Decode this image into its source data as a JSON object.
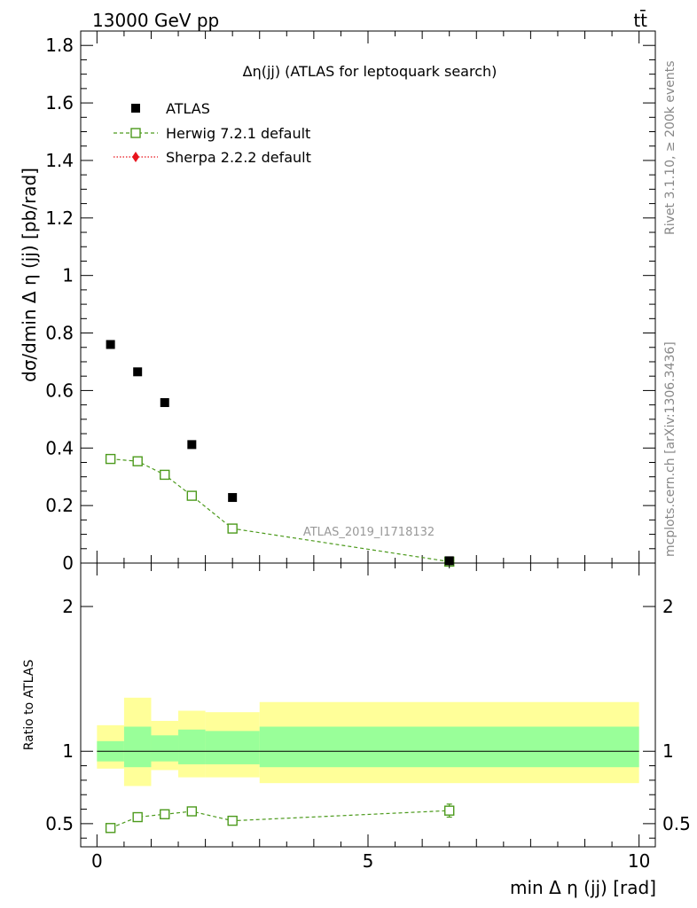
{
  "header": {
    "left": "13000 GeV pp",
    "right": "tt̄"
  },
  "side_labels": {
    "top": "Rivet 3.1.10, ≥ 200k events",
    "bottom": "mcplots.cern.ch [arXiv:1306.3436]"
  },
  "chart_data": {
    "type": "scatter",
    "title": "Δη(jj) (ATLAS for leptoquark search)",
    "watermark": "ATLAS_2019_I1718132",
    "xlabel": "min Δ η (jj) [rad]",
    "ylabel": "dσ/dmin Δ η (jj) [pb/rad]",
    "xlim": [
      -0.3,
      10.3
    ],
    "ylim": [
      0,
      1.85
    ],
    "x_ticks": [
      0,
      5,
      10
    ],
    "y_ticks": [
      0,
      0.2,
      0.4,
      0.6,
      0.8,
      1,
      1.2,
      1.4,
      1.6,
      1.8
    ],
    "y_tick_labels": [
      "0",
      "0.2",
      "0.4",
      "0.6",
      "0.8",
      "1",
      "1.2",
      "1.4",
      "1.6",
      "1.8"
    ],
    "legend_position": "top-left",
    "series": [
      {
        "name": "ATLAS",
        "color": "#000000",
        "marker": "filled-square",
        "x": [
          0.25,
          0.75,
          1.25,
          1.75,
          2.5,
          6.5
        ],
        "y": [
          0.76,
          0.665,
          0.558,
          0.412,
          0.228,
          0.008
        ]
      },
      {
        "name": "Herwig 7.2.1 default",
        "color": "#4c9a1c",
        "marker": "open-square",
        "line": "dashed",
        "x": [
          0.25,
          0.75,
          1.25,
          1.75,
          2.5,
          6.5
        ],
        "y": [
          0.362,
          0.354,
          0.307,
          0.234,
          0.12,
          0.005
        ]
      },
      {
        "name": "Sherpa 2.2.2 default",
        "color": "#e8141c",
        "marker": "filled-diamond",
        "line": "dotted",
        "x": [],
        "y": []
      }
    ],
    "ratio_panel": {
      "ylabel": "Ratio to ATLAS",
      "ylim": [
        0.34,
        2.3
      ],
      "y_ticks": [
        0.5,
        1,
        2
      ],
      "y_tick_labels": [
        "0.5",
        "1",
        "2"
      ],
      "reference_line": 1,
      "bins": [
        {
          "lo": 0.0,
          "hi": 0.5,
          "band_inner": [
            0.93,
            1.07
          ],
          "band_outer": [
            0.88,
            1.18
          ]
        },
        {
          "lo": 0.5,
          "hi": 1.0,
          "band_inner": [
            0.89,
            1.17
          ],
          "band_outer": [
            0.76,
            1.37
          ]
        },
        {
          "lo": 1.0,
          "hi": 1.5,
          "band_inner": [
            0.93,
            1.11
          ],
          "band_outer": [
            0.87,
            1.21
          ]
        },
        {
          "lo": 1.5,
          "hi": 2.0,
          "band_inner": [
            0.91,
            1.15
          ],
          "band_outer": [
            0.82,
            1.28
          ]
        },
        {
          "lo": 2.0,
          "hi": 3.0,
          "band_inner": [
            0.91,
            1.14
          ],
          "band_outer": [
            0.82,
            1.27
          ]
        },
        {
          "lo": 3.0,
          "hi": 10.0,
          "band_inner": [
            0.89,
            1.17
          ],
          "band_outer": [
            0.78,
            1.34
          ]
        }
      ],
      "herwig_ratio": {
        "x": [
          0.25,
          0.75,
          1.25,
          1.75,
          2.5,
          6.5
        ],
        "y": [
          0.47,
          0.545,
          0.565,
          0.585,
          0.52,
          0.59
        ],
        "err": [
          0.012,
          0.014,
          0.015,
          0.02,
          0.015,
          0.045
        ]
      }
    }
  }
}
